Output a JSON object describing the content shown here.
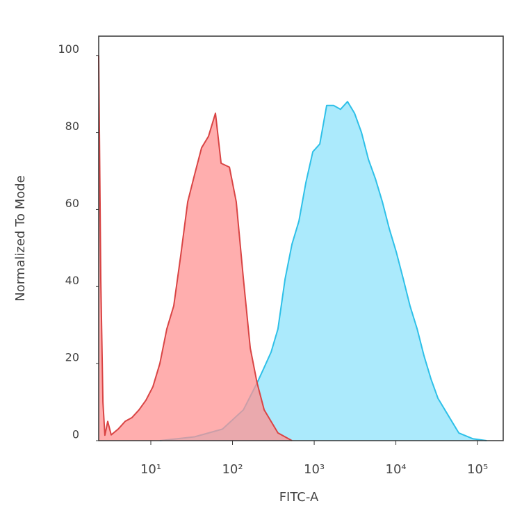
{
  "chart_data": {
    "type": "area",
    "x_label": "FITC-A",
    "y_label": "Normalized To Mode",
    "log_x": true,
    "xlim": [
      2.3,
      206000
    ],
    "ylim": [
      0,
      105
    ],
    "xticks": [
      {
        "value": 10,
        "label": "10¹"
      },
      {
        "value": 100,
        "label": "10²"
      },
      {
        "value": 1000,
        "label": "10³"
      },
      {
        "value": 10000,
        "label": "10⁴"
      },
      {
        "value": 100000,
        "label": "10⁵"
      }
    ],
    "yticks": [
      0,
      20,
      40,
      60,
      80,
      100
    ],
    "series": [
      {
        "color": "#2ec0e8",
        "fill": "#8fe3fb",
        "x": [
          12.9,
          34.3,
          75.4,
          136,
          200,
          244,
          297,
          360,
          440,
          535,
          650,
          791,
          962,
          1170,
          1420,
          1730,
          2100,
          2560,
          3120,
          3790,
          4610,
          5610,
          6820,
          8300,
          10100,
          12300,
          14900,
          18200,
          22100,
          26900,
          32700,
          39800,
          48400,
          58900,
          87100,
          129000
        ],
        "values": [
          0,
          1,
          3,
          8,
          15,
          19,
          23,
          29,
          42,
          51,
          57,
          67,
          75,
          77,
          87,
          87,
          86,
          88,
          85,
          80,
          73,
          68,
          62,
          55,
          49,
          42,
          35,
          29,
          22,
          16,
          11,
          8,
          5,
          2,
          0.5,
          0
        ]
      },
      {
        "color": "#d94444",
        "fill": "#ff9393",
        "x": [
          2.3,
          2.44,
          2.59,
          2.74,
          2.97,
          3.27,
          3.98,
          4.84,
          5.89,
          7.16,
          8.72,
          10.6,
          12.9,
          15.7,
          19.1,
          23.2,
          28.3,
          34.3,
          41.8,
          50.8,
          61.8,
          72.4,
          91.6,
          111,
          136,
          165,
          200,
          244,
          360,
          535
        ],
        "values": [
          100,
          42,
          10,
          1.4,
          5,
          1.5,
          3,
          5,
          6,
          8,
          10.5,
          14,
          20,
          29,
          35,
          48,
          62,
          69,
          76,
          79,
          85,
          72,
          71,
          62,
          42,
          24,
          15,
          8,
          2,
          0
        ]
      }
    ]
  }
}
